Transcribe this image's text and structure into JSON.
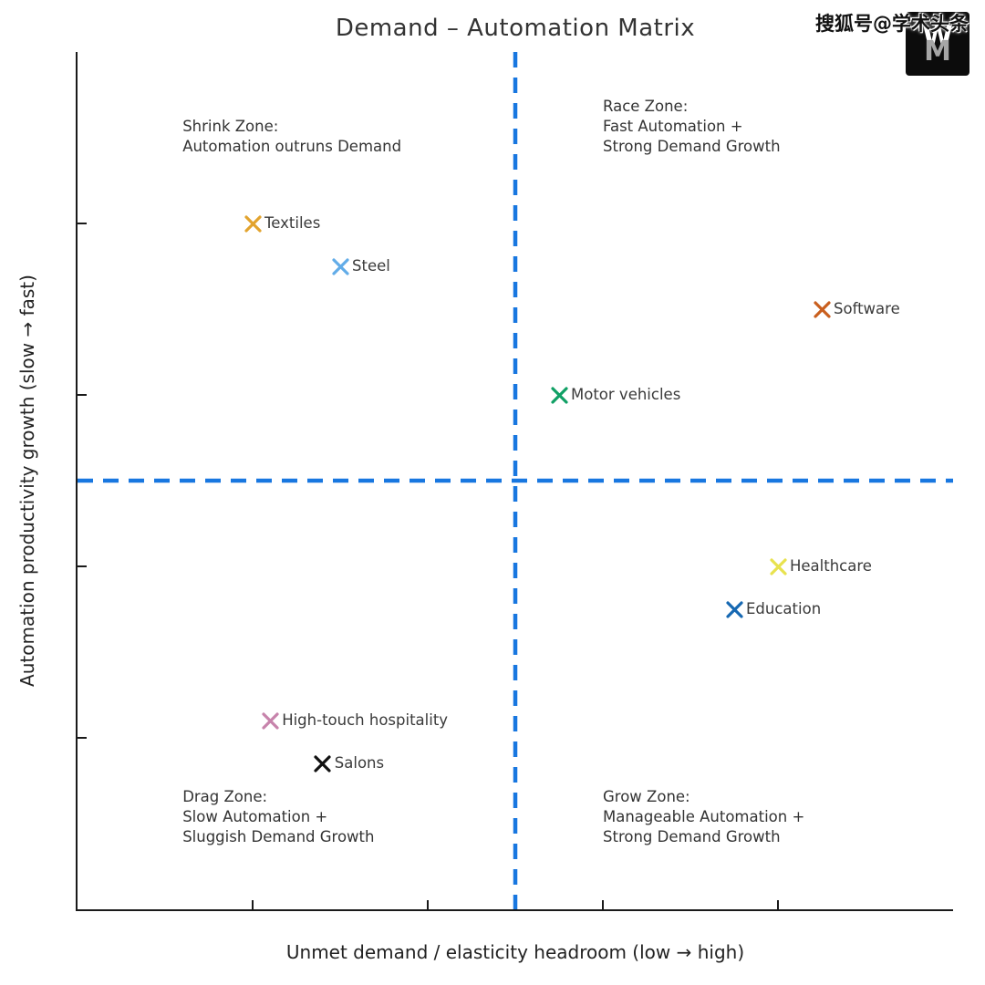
{
  "watermark": {
    "text": "搜狐号@学术头条",
    "logo_top": "W",
    "logo_bottom": "M"
  },
  "chart_data": {
    "type": "scatter",
    "title": "Demand – Automation Matrix",
    "xlabel": "Unmet demand / elasticity headroom (low → high)",
    "ylabel": "Automation productivity growth (slow → fast)",
    "xlim": [
      0,
      10
    ],
    "ylim": [
      0,
      10
    ],
    "x_ticks": [
      2,
      4,
      6,
      8
    ],
    "y_ticks": [
      2,
      4,
      6,
      8
    ],
    "grid": false,
    "marker": "x",
    "reference_lines": {
      "vertical_x": 5,
      "horizontal_y": 5,
      "color": "#1877e0",
      "style": "dashed"
    },
    "points": [
      {
        "label": "Textiles",
        "x": 2.0,
        "y": 8.0,
        "color": "#e2a32e"
      },
      {
        "label": "Steel",
        "x": 3.0,
        "y": 7.5,
        "color": "#62ace8"
      },
      {
        "label": "Software",
        "x": 8.5,
        "y": 7.0,
        "color": "#c95f1e"
      },
      {
        "label": "Motor vehicles",
        "x": 5.5,
        "y": 6.0,
        "color": "#10a065"
      },
      {
        "label": "Healthcare",
        "x": 8.0,
        "y": 4.0,
        "color": "#e8e24e"
      },
      {
        "label": "Education",
        "x": 7.5,
        "y": 3.5,
        "color": "#1668b2"
      },
      {
        "label": "High-touch hospitality",
        "x": 2.2,
        "y": 2.2,
        "color": "#c783ab"
      },
      {
        "label": "Salons",
        "x": 2.8,
        "y": 1.7,
        "color": "#111111"
      }
    ],
    "quadrant_labels": [
      {
        "name": "shrink",
        "x": 1.2,
        "y": 9.24,
        "text": "Shrink Zone:\nAutomation outruns Demand"
      },
      {
        "name": "race",
        "x": 6.0,
        "y": 9.48,
        "text": "Race Zone:\nFast Automation +\nStrong Demand Growth"
      },
      {
        "name": "drag",
        "x": 1.2,
        "y": 1.43,
        "text": "Drag Zone:\nSlow Automation +\nSluggish Demand Growth"
      },
      {
        "name": "grow",
        "x": 6.0,
        "y": 1.43,
        "text": "Grow Zone:\nManageable Automation +\nStrong Demand Growth"
      }
    ]
  }
}
